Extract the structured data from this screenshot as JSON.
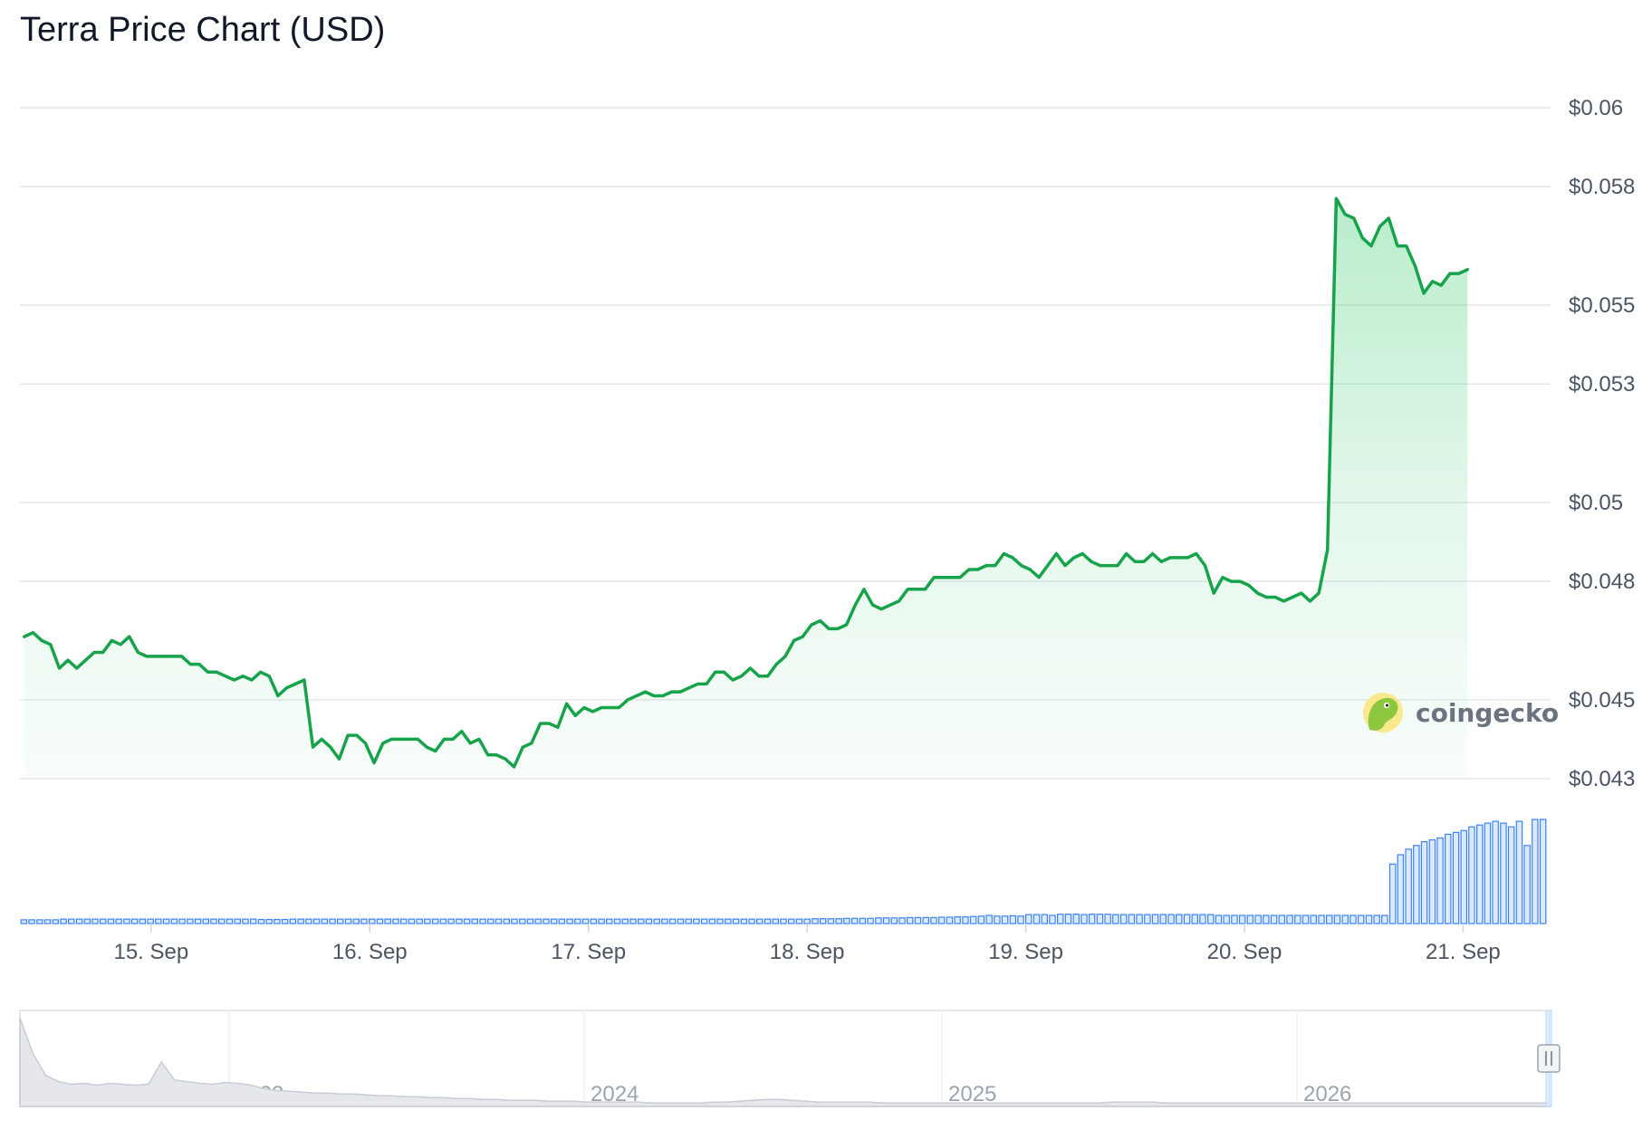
{
  "title": "Terra Price Chart (USD)",
  "brand": {
    "name": "coingecko",
    "icon": "coingecko-logo-icon",
    "colors": {
      "circle": "#f9e88d",
      "gecko": "#8dc63f"
    }
  },
  "colors": {
    "line": "#16a34a",
    "area": "#22c55e",
    "volume_fill": "#dbeafe",
    "volume_stroke": "#3b82f6",
    "grid": "#e5e7eb",
    "navigator_fill": "#e5e7eb",
    "navigator_stroke": "#c7cdd4"
  },
  "chart_data": {
    "type": "line",
    "title": "Terra Price Chart (USD)",
    "x_unit": "day offset from 15 Sep 00:00",
    "xlim": [
      -0.6,
      6.4
    ],
    "ylim": [
      0.043,
      0.06
    ],
    "y_ticks": [
      0.043,
      0.045,
      0.048,
      0.05,
      0.053,
      0.055,
      0.058,
      0.06
    ],
    "y_tick_labels": [
      "$0.043",
      "$0.045",
      "$0.048",
      "$0.05",
      "$0.053",
      "$0.055",
      "$0.058",
      "$0.06"
    ],
    "x_ticks": [
      0,
      1,
      2,
      3,
      4,
      5,
      6
    ],
    "x_tick_labels": [
      "15. Sep",
      "16. Sep",
      "17. Sep",
      "18. Sep",
      "19. Sep",
      "20. Sep",
      "21. Sep"
    ],
    "grid": true,
    "legend": "none",
    "series": [
      {
        "values": [
          [
            -0.58,
            0.0466
          ],
          [
            -0.54,
            0.0467
          ],
          [
            -0.5,
            0.0465
          ],
          [
            -0.46,
            0.0464
          ],
          [
            -0.42,
            0.0458
          ],
          [
            -0.38,
            0.046
          ],
          [
            -0.34,
            0.0458
          ],
          [
            -0.3,
            0.046
          ],
          [
            -0.26,
            0.0462
          ],
          [
            -0.22,
            0.0462
          ],
          [
            -0.18,
            0.0465
          ],
          [
            -0.14,
            0.0464
          ],
          [
            -0.1,
            0.0466
          ],
          [
            -0.06,
            0.0462
          ],
          [
            -0.02,
            0.0461
          ],
          [
            0.02,
            0.0461
          ],
          [
            0.06,
            0.0461
          ],
          [
            0.1,
            0.0461
          ],
          [
            0.14,
            0.0461
          ],
          [
            0.18,
            0.0459
          ],
          [
            0.22,
            0.0459
          ],
          [
            0.26,
            0.0457
          ],
          [
            0.3,
            0.0457
          ],
          [
            0.34,
            0.0456
          ],
          [
            0.38,
            0.0455
          ],
          [
            0.42,
            0.0456
          ],
          [
            0.46,
            0.0455
          ],
          [
            0.5,
            0.0457
          ],
          [
            0.54,
            0.0456
          ],
          [
            0.58,
            0.0451
          ],
          [
            0.62,
            0.0453
          ],
          [
            0.66,
            0.0454
          ],
          [
            0.7,
            0.0455
          ],
          [
            0.74,
            0.0438
          ],
          [
            0.78,
            0.044
          ],
          [
            0.82,
            0.0438
          ],
          [
            0.86,
            0.0435
          ],
          [
            0.9,
            0.0441
          ],
          [
            0.94,
            0.0441
          ],
          [
            0.98,
            0.0439
          ],
          [
            1.02,
            0.0434
          ],
          [
            1.06,
            0.0439
          ],
          [
            1.1,
            0.044
          ],
          [
            1.14,
            0.044
          ],
          [
            1.18,
            0.044
          ],
          [
            1.22,
            0.044
          ],
          [
            1.26,
            0.0438
          ],
          [
            1.3,
            0.0437
          ],
          [
            1.34,
            0.044
          ],
          [
            1.38,
            0.044
          ],
          [
            1.42,
            0.0442
          ],
          [
            1.46,
            0.0439
          ],
          [
            1.5,
            0.044
          ],
          [
            1.54,
            0.0436
          ],
          [
            1.58,
            0.0436
          ],
          [
            1.62,
            0.0435
          ],
          [
            1.66,
            0.0433
          ],
          [
            1.7,
            0.0438
          ],
          [
            1.74,
            0.0439
          ],
          [
            1.78,
            0.0444
          ],
          [
            1.82,
            0.0444
          ],
          [
            1.86,
            0.0443
          ],
          [
            1.9,
            0.0449
          ],
          [
            1.94,
            0.0446
          ],
          [
            1.98,
            0.0448
          ],
          [
            2.02,
            0.0447
          ],
          [
            2.06,
            0.0448
          ],
          [
            2.1,
            0.0448
          ],
          [
            2.14,
            0.0448
          ],
          [
            2.18,
            0.045
          ],
          [
            2.22,
            0.0451
          ],
          [
            2.26,
            0.0452
          ],
          [
            2.3,
            0.0451
          ],
          [
            2.34,
            0.0451
          ],
          [
            2.38,
            0.0452
          ],
          [
            2.42,
            0.0452
          ],
          [
            2.46,
            0.0453
          ],
          [
            2.5,
            0.0454
          ],
          [
            2.54,
            0.0454
          ],
          [
            2.58,
            0.0457
          ],
          [
            2.62,
            0.0457
          ],
          [
            2.66,
            0.0455
          ],
          [
            2.7,
            0.0456
          ],
          [
            2.74,
            0.0458
          ],
          [
            2.78,
            0.0456
          ],
          [
            2.82,
            0.0456
          ],
          [
            2.86,
            0.0459
          ],
          [
            2.9,
            0.0461
          ],
          [
            2.94,
            0.0465
          ],
          [
            2.98,
            0.0466
          ],
          [
            3.02,
            0.0469
          ],
          [
            3.06,
            0.047
          ],
          [
            3.1,
            0.0468
          ],
          [
            3.14,
            0.0468
          ],
          [
            3.18,
            0.0469
          ],
          [
            3.22,
            0.0474
          ],
          [
            3.26,
            0.0478
          ],
          [
            3.3,
            0.0474
          ],
          [
            3.34,
            0.0473
          ],
          [
            3.38,
            0.0474
          ],
          [
            3.42,
            0.0475
          ],
          [
            3.46,
            0.0478
          ],
          [
            3.5,
            0.0478
          ],
          [
            3.54,
            0.0478
          ],
          [
            3.58,
            0.0481
          ],
          [
            3.62,
            0.0481
          ],
          [
            3.66,
            0.0481
          ],
          [
            3.7,
            0.0481
          ],
          [
            3.74,
            0.0483
          ],
          [
            3.78,
            0.0483
          ],
          [
            3.82,
            0.0484
          ],
          [
            3.86,
            0.0484
          ],
          [
            3.9,
            0.0487
          ],
          [
            3.94,
            0.0486
          ],
          [
            3.98,
            0.0484
          ],
          [
            4.02,
            0.0483
          ],
          [
            4.06,
            0.0481
          ],
          [
            4.1,
            0.0484
          ],
          [
            4.14,
            0.0487
          ],
          [
            4.18,
            0.0484
          ],
          [
            4.22,
            0.0486
          ],
          [
            4.26,
            0.0487
          ],
          [
            4.3,
            0.0485
          ],
          [
            4.34,
            0.0484
          ],
          [
            4.38,
            0.0484
          ],
          [
            4.42,
            0.0484
          ],
          [
            4.46,
            0.0487
          ],
          [
            4.5,
            0.0485
          ],
          [
            4.54,
            0.0485
          ],
          [
            4.58,
            0.0487
          ],
          [
            4.62,
            0.0485
          ],
          [
            4.66,
            0.0486
          ],
          [
            4.7,
            0.0486
          ],
          [
            4.74,
            0.0486
          ],
          [
            4.78,
            0.0487
          ],
          [
            4.82,
            0.0484
          ],
          [
            4.86,
            0.0477
          ],
          [
            4.9,
            0.0481
          ],
          [
            4.94,
            0.048
          ],
          [
            4.98,
            0.048
          ],
          [
            5.02,
            0.0479
          ],
          [
            5.06,
            0.0477
          ],
          [
            5.1,
            0.0476
          ],
          [
            5.14,
            0.0476
          ],
          [
            5.18,
            0.0475
          ],
          [
            5.22,
            0.0476
          ],
          [
            5.26,
            0.0477
          ],
          [
            5.3,
            0.0475
          ],
          [
            5.34,
            0.0477
          ],
          [
            5.38,
            0.0488
          ],
          [
            5.42,
            0.0577
          ],
          [
            5.46,
            0.0573
          ],
          [
            5.5,
            0.0572
          ],
          [
            5.54,
            0.0567
          ],
          [
            5.58,
            0.0565
          ],
          [
            5.62,
            0.057
          ],
          [
            5.66,
            0.0572
          ],
          [
            5.7,
            0.0565
          ],
          [
            5.74,
            0.0565
          ],
          [
            5.78,
            0.056
          ],
          [
            5.82,
            0.0553
          ],
          [
            5.86,
            0.0556
          ],
          [
            5.9,
            0.0555
          ],
          [
            5.94,
            0.0558
          ],
          [
            5.98,
            0.0558
          ],
          [
            6.02,
            0.0559
          ]
        ]
      }
    ],
    "volume": {
      "values": [
        1,
        1,
        1,
        1,
        1,
        1.2,
        1.2,
        1.2,
        1.2,
        1.2,
        1.2,
        1.2,
        1.2,
        1.2,
        1.2,
        1.2,
        1.2,
        1.2,
        1.2,
        1.2,
        1.2,
        1.2,
        1.2,
        1.2,
        1.2,
        1.2,
        1.2,
        1.2,
        1.2,
        1.2,
        1.1,
        1.1,
        1.1,
        1.1,
        1.2,
        1.2,
        1.2,
        1.2,
        1.2,
        1.2,
        1.2,
        1.2,
        1.2,
        1.2,
        1.2,
        1.2,
        1.2,
        1.2,
        1.2,
        1.2,
        1.2,
        1.2,
        1.2,
        1.2,
        1.2,
        1.2,
        1.2,
        1.2,
        1.2,
        1.2,
        1.2,
        1.2,
        1.2,
        1.2,
        1.2,
        1.2,
        1.2,
        1.2,
        1.2,
        1.2,
        1.2,
        1.2,
        1.2,
        1.2,
        1.2,
        1.2,
        1.2,
        1.2,
        1.2,
        1.2,
        1.2,
        1.2,
        1.2,
        1.2,
        1.2,
        1.2,
        1.2,
        1.2,
        1.2,
        1.2,
        1.2,
        1.2,
        1.2,
        1.2,
        1.2,
        1.2,
        1.2,
        1.2,
        1.2,
        1.2,
        1.3,
        1.3,
        1.3,
        1.3,
        1.4,
        1.4,
        1.4,
        1.4,
        1.5,
        1.5,
        1.5,
        1.5,
        1.6,
        1.6,
        1.6,
        1.6,
        1.7,
        1.7,
        1.8,
        1.8,
        1.9,
        2,
        2.2,
        2,
        2,
        2.1,
        2,
        2.4,
        2.4,
        2.4,
        2.2,
        2.5,
        2.5,
        2.5,
        2.4,
        2.5,
        2.5,
        2.5,
        2.4,
        2.4,
        2.4,
        2.4,
        2.4,
        2.4,
        2.4,
        2.4,
        2.4,
        2.4,
        2.4,
        2.4,
        2.4,
        2.2,
        2.2,
        2.2,
        2.2,
        2.2,
        2.2,
        2.2,
        2.2,
        2.2,
        2.2,
        2.2,
        2.2,
        2.2,
        2.2,
        2.2,
        2.2,
        2.2,
        2.2,
        2.2,
        2.2,
        2.2,
        2.2,
        16,
        18.5,
        20,
        21,
        22,
        22.5,
        23,
        24,
        24.5,
        25,
        26,
        26.5,
        27,
        27.5,
        27,
        26,
        27.5,
        21,
        28,
        28
      ]
    },
    "navigator": {
      "labels": [
        "2023",
        "2024",
        "2025",
        "2026"
      ],
      "values": [
        1.0,
        0.6,
        0.35,
        0.28,
        0.25,
        0.26,
        0.24,
        0.26,
        0.25,
        0.24,
        0.25,
        0.5,
        0.3,
        0.28,
        0.26,
        0.25,
        0.27,
        0.26,
        0.24,
        0.2,
        0.18,
        0.17,
        0.16,
        0.15,
        0.15,
        0.14,
        0.14,
        0.13,
        0.12,
        0.12,
        0.11,
        0.11,
        0.1,
        0.1,
        0.09,
        0.09,
        0.08,
        0.08,
        0.07,
        0.07,
        0.07,
        0.06,
        0.06,
        0.06,
        0.05,
        0.05,
        0.05,
        0.05,
        0.05,
        0.04,
        0.04,
        0.04,
        0.04,
        0.04,
        0.05,
        0.05,
        0.06,
        0.07,
        0.08,
        0.08,
        0.07,
        0.06,
        0.05,
        0.05,
        0.05,
        0.05,
        0.05,
        0.04,
        0.04,
        0.04,
        0.04,
        0.04,
        0.04,
        0.04,
        0.04,
        0.04,
        0.04,
        0.04,
        0.04,
        0.04,
        0.04,
        0.04,
        0.04,
        0.04,
        0.04,
        0.05,
        0.05,
        0.05,
        0.05,
        0.04,
        0.04,
        0.04,
        0.04,
        0.04,
        0.04,
        0.04,
        0.04,
        0.04,
        0.04,
        0.04,
        0.04,
        0.04,
        0.04,
        0.04,
        0.04,
        0.04,
        0.04,
        0.04,
        0.04,
        0.04,
        0.04,
        0.04,
        0.04,
        0.04,
        0.04,
        0.04,
        0.04,
        0.04,
        0.04,
        0.04
      ]
    }
  }
}
